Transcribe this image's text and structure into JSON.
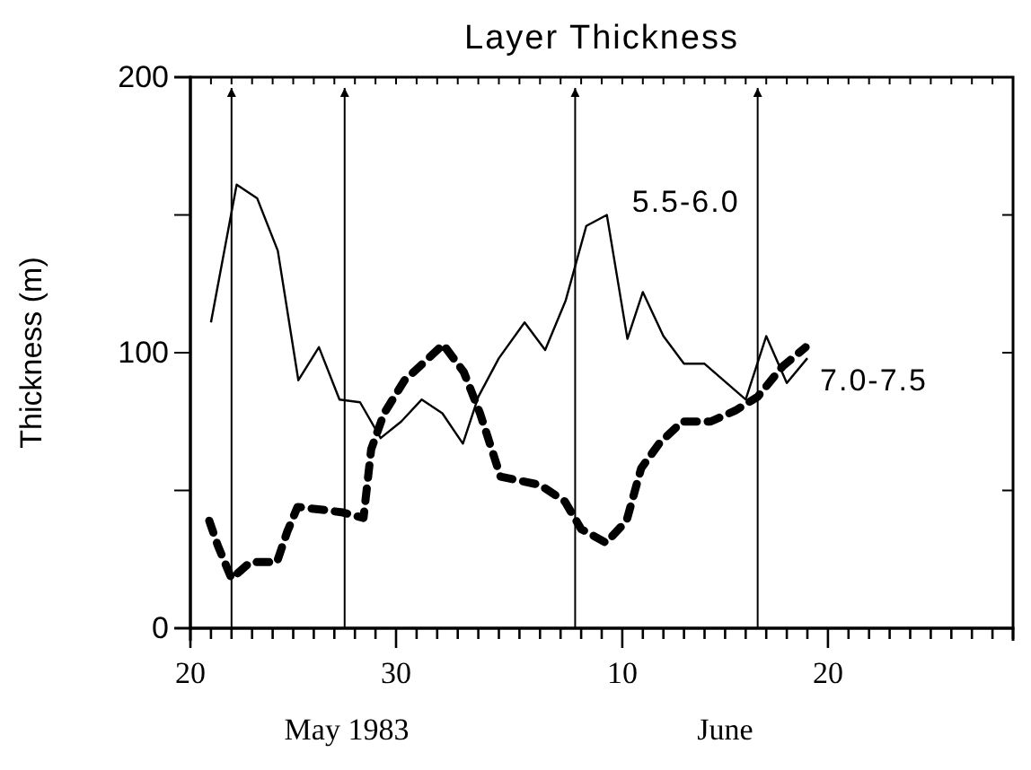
{
  "chart_data": {
    "type": "line",
    "title": "Layer Thickness",
    "ylabel": "Thickness (m)",
    "xlim": [
      "1983-05-20",
      "1983-06-29"
    ],
    "xticks": [
      {
        "value": "1983-05-20",
        "label": "20"
      },
      {
        "value": "1983-05-21",
        "label": null
      },
      {
        "value": "1983-05-22",
        "label": null
      },
      {
        "value": "1983-05-23",
        "label": null
      },
      {
        "value": "1983-05-24",
        "label": null
      },
      {
        "value": "1983-05-25",
        "label": null
      },
      {
        "value": "1983-05-26",
        "label": null
      },
      {
        "value": "1983-05-27",
        "label": null
      },
      {
        "value": "1983-05-28",
        "label": null
      },
      {
        "value": "1983-05-29",
        "label": null
      },
      {
        "value": "1983-05-30",
        "label": "30"
      },
      {
        "value": "1983-05-31",
        "label": null
      },
      {
        "value": "1983-06-01",
        "label": null
      },
      {
        "value": "1983-06-02",
        "label": null
      },
      {
        "value": "1983-06-03",
        "label": null
      },
      {
        "value": "1983-06-04",
        "label": null
      },
      {
        "value": "1983-06-05",
        "label": null
      },
      {
        "value": "1983-06-06",
        "label": null
      },
      {
        "value": "1983-06-07",
        "label": null
      },
      {
        "value": "1983-06-08",
        "label": null
      },
      {
        "value": "1983-06-09",
        "label": null
      },
      {
        "value": "1983-06-10",
        "label": "10"
      },
      {
        "value": "1983-06-11",
        "label": null
      },
      {
        "value": "1983-06-12",
        "label": null
      },
      {
        "value": "1983-06-13",
        "label": null
      },
      {
        "value": "1983-06-14",
        "label": null
      },
      {
        "value": "1983-06-15",
        "label": null
      },
      {
        "value": "1983-06-16",
        "label": null
      },
      {
        "value": "1983-06-17",
        "label": null
      },
      {
        "value": "1983-06-18",
        "label": null
      },
      {
        "value": "1983-06-19",
        "label": null
      },
      {
        "value": "1983-06-20",
        "label": "20"
      },
      {
        "value": "1983-06-21",
        "label": null
      },
      {
        "value": "1983-06-22",
        "label": null
      },
      {
        "value": "1983-06-23",
        "label": null
      },
      {
        "value": "1983-06-24",
        "label": null
      },
      {
        "value": "1983-06-25",
        "label": null
      },
      {
        "value": "1983-06-26",
        "label": null
      },
      {
        "value": "1983-06-27",
        "label": null
      },
      {
        "value": "1983-06-28",
        "label": null
      },
      {
        "value": "1983-06-29",
        "label": null
      }
    ],
    "ylim": [
      0,
      200
    ],
    "yticks": [
      0,
      {
        "value": 50,
        "label": null
      },
      100,
      {
        "value": 150,
        "label": null
      },
      200
    ],
    "grid": false,
    "legend": false,
    "marker": "none",
    "series": [
      {
        "name": "5.5-6.0",
        "color": "#000000",
        "line_style": "solid",
        "x": [
          "1983-05-21T00:00",
          "1983-05-22T06:00",
          "1983-05-23T06:00",
          "1983-05-24T06:00",
          "1983-05-25T06:00",
          "1983-05-26T06:00",
          "1983-05-27T06:00",
          "1983-05-28T06:00",
          "1983-05-29T06:00",
          "1983-05-30T06:00",
          "1983-05-31T06:00",
          "1983-06-01T06:00",
          "1983-06-02T06:00",
          "1983-06-03T00:00",
          "1983-06-04T00:00",
          "1983-06-05T06:00",
          "1983-06-06T06:00",
          "1983-06-07T06:00",
          "1983-06-08T06:00",
          "1983-06-09T06:00",
          "1983-06-10T06:00",
          "1983-06-11T00:00",
          "1983-06-12T00:00",
          "1983-06-13T00:00",
          "1983-06-14T00:00",
          "1983-06-16T00:00",
          "1983-06-17T00:00",
          "1983-06-18T00:00",
          "1983-06-19T00:00"
        ],
        "values": [
          111,
          161,
          156,
          137,
          90,
          102,
          83,
          82,
          69,
          75,
          83,
          78,
          67,
          84,
          98,
          111,
          101,
          119,
          146,
          150,
          105,
          122,
          106,
          96,
          96,
          83,
          106,
          89,
          98
        ]
      },
      {
        "name": "7.0-7.5",
        "color": "#000000",
        "line_style": "dashed",
        "x": [
          "1983-05-20T22:00",
          "1983-05-21T08:00",
          "1983-05-22T00:00",
          "1983-05-22T22:00",
          "1983-05-24T05:00",
          "1983-05-24T17:00",
          "1983-05-25T05:00",
          "1983-05-26T10:00",
          "1983-05-27T10:00",
          "1983-05-28T10:00",
          "1983-05-28T19:00",
          "1983-05-29T10:00",
          "1983-05-30T10:00",
          "1983-05-31T07:00",
          "1983-06-01T07:00",
          "1983-06-02T07:00",
          "1983-06-03T02:00",
          "1983-06-04T02:00",
          "1983-06-06T00:00",
          "1983-06-07T05:00",
          "1983-06-08T00:00",
          "1983-06-09T05:00",
          "1983-06-10T05:00",
          "1983-06-10T22:00",
          "1983-06-11T19:00",
          "1983-06-12T22:00",
          "1983-06-14T07:00",
          "1983-06-15T12:00",
          "1983-06-16T14:00",
          "1983-06-17T19:00",
          "1983-06-18T22:00"
        ],
        "values": [
          39,
          30,
          18,
          24,
          24,
          35,
          44,
          43,
          42,
          40,
          65,
          78,
          90,
          96,
          103,
          93,
          78,
          55,
          52,
          46,
          36,
          31,
          39,
          58,
          67,
          75,
          75,
          79,
          84,
          95,
          102
        ]
      }
    ],
    "ref_lines": [
      {
        "axis": "x",
        "value": "1983-05-22",
        "color": "#000000"
      },
      {
        "axis": "x",
        "value": "1983-05-27T12:00",
        "color": "#000000"
      },
      {
        "axis": "x",
        "value": "1983-06-07T17:00",
        "color": "#000000"
      },
      {
        "axis": "x",
        "value": "1983-06-16T14:00",
        "color": "#000000"
      }
    ],
    "annotations": [
      "May 1983",
      "June"
    ]
  }
}
